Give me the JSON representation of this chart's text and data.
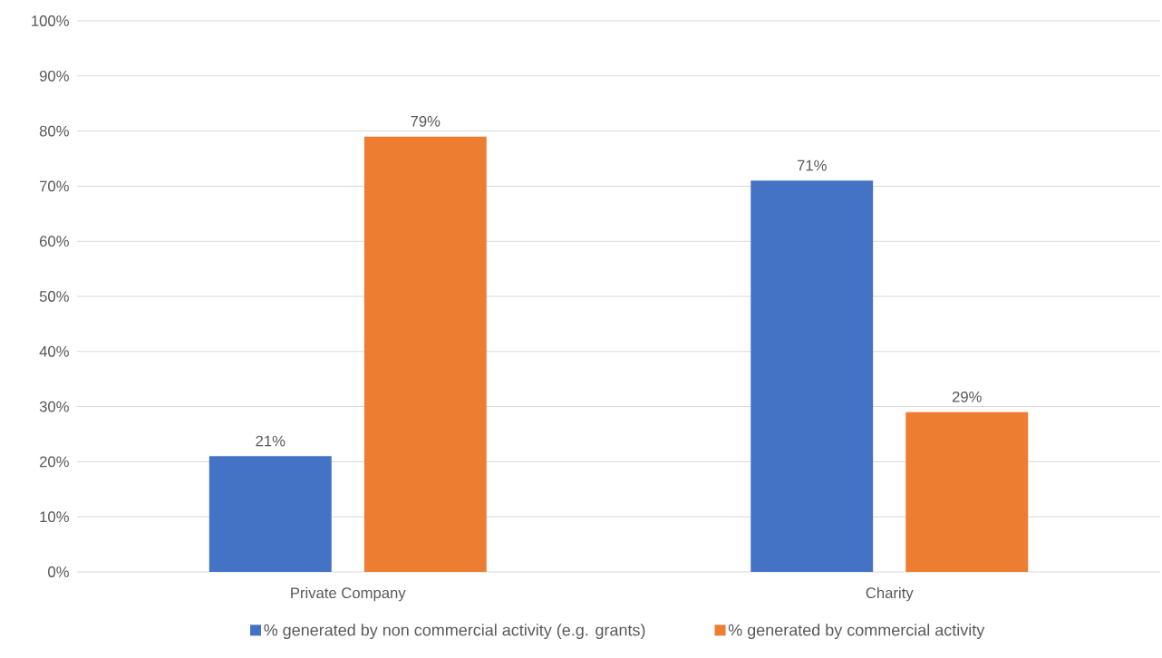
{
  "chart_data": {
    "type": "bar",
    "categories": [
      "Private Company",
      "Charity"
    ],
    "series": [
      {
        "name": "% generated by non commercial activity (e.g. grants)",
        "color": "#4472c4",
        "values": [
          21,
          71
        ],
        "value_labels": [
          "21%",
          "71%"
        ]
      },
      {
        "name": "% generated by commercial activity",
        "color": "#ed7d31",
        "values": [
          79,
          29
        ],
        "value_labels": [
          "79%",
          "29%"
        ]
      }
    ],
    "ylim": [
      0,
      100
    ],
    "yticks": [
      {
        "value": 0,
        "label": "0%"
      },
      {
        "value": 10,
        "label": "10%"
      },
      {
        "value": 20,
        "label": "20%"
      },
      {
        "value": 30,
        "label": "30%"
      },
      {
        "value": 40,
        "label": "40%"
      },
      {
        "value": 50,
        "label": "50%"
      },
      {
        "value": 60,
        "label": "60%"
      },
      {
        "value": 70,
        "label": "70%"
      },
      {
        "value": 80,
        "label": "80%"
      },
      {
        "value": 90,
        "label": "90%"
      },
      {
        "value": 100,
        "label": "100%"
      }
    ],
    "grid": "y",
    "legend": "bottom"
  }
}
